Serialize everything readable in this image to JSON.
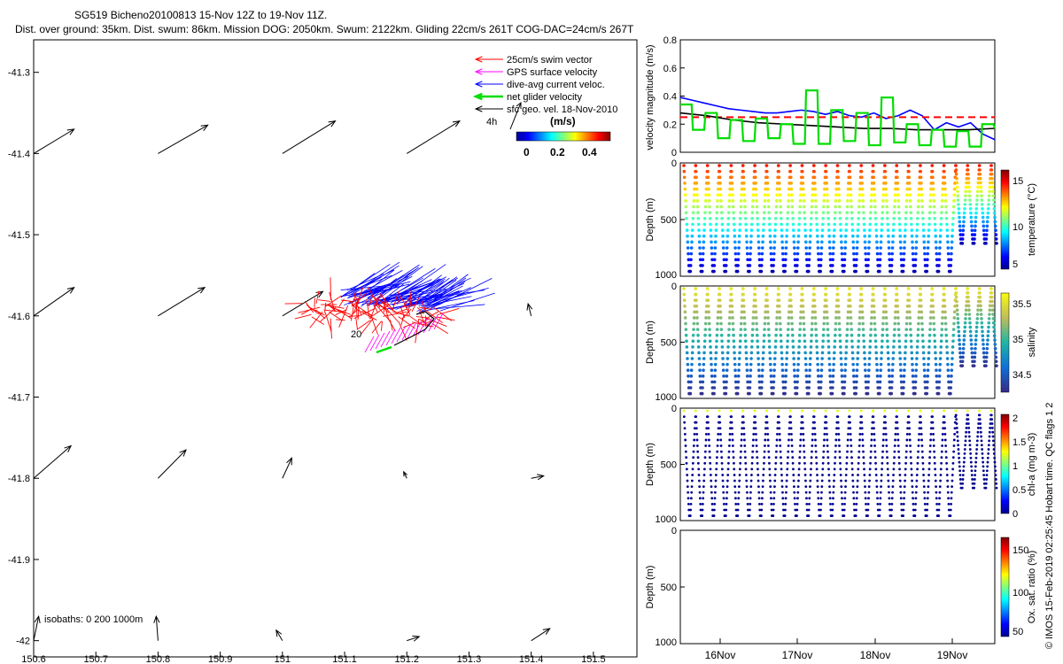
{
  "header": {
    "line1": "SG519 Bicheno20100813 15-Nov 12Z to 19-Nov 11Z.",
    "line2": "Dist. over ground: 35km. Dist. swum: 86km. Mission DOG: 2050km. Swum: 2122km. Gliding 22cm/s 261T COG-DAC=24cm/s 267T"
  },
  "credit": "© IMOS 15-Feb-2019 02:25:45 Hobart time. QC flags 1  2",
  "colors": {
    "swim": "#ff0000",
    "gps": "#ff00ff",
    "dac": "#0000ff",
    "net": "#00dd00",
    "geo": "#000000"
  },
  "map": {
    "legend": [
      {
        "label": "25cm/s swim vector",
        "color": "#ff0000"
      },
      {
        "label": "GPS surface velocity",
        "color": "#ff00ff"
      },
      {
        "label": "dive-avg current veloc.",
        "color": "#0000ff"
      },
      {
        "label": "net glider velocity",
        "color": "#00dd00"
      },
      {
        "label": "sfc geo. vel. 18-Nov-2010",
        "color": "#000000"
      }
    ],
    "scale_label": "4h",
    "colorbar_unit": "(m/s)",
    "colorbar_ticks": [
      "0",
      "0.2",
      "0.4"
    ],
    "isobaths_label": "isobaths: 0   200  1000m",
    "track_label": "20",
    "xticks": [
      "150.6",
      "150.7",
      "150.8",
      "150.9",
      "151",
      "151.1",
      "151.2",
      "151.3",
      "151.4",
      "151.5"
    ],
    "yticks": [
      "-41.3",
      "-41.4",
      "-41.5",
      "-41.6",
      "-41.7",
      "-41.8",
      "-41.9",
      "-42"
    ]
  },
  "chart_data": [
    {
      "type": "scatter",
      "title": "",
      "xlim": [
        150.6,
        151.57
      ],
      "ylim": [
        -42.02,
        -41.26
      ],
      "vector_grid": [
        {
          "lon": 150.6,
          "lat": -41.4,
          "dlon": 0.065,
          "dlat": 0.03
        },
        {
          "lon": 150.8,
          "lat": -41.4,
          "dlon": 0.08,
          "dlat": 0.035
        },
        {
          "lon": 151.0,
          "lat": -41.4,
          "dlon": 0.085,
          "dlat": 0.04
        },
        {
          "lon": 151.2,
          "lat": -41.4,
          "dlon": 0.085,
          "dlat": 0.04
        },
        {
          "lon": 150.6,
          "lat": -41.6,
          "dlon": 0.065,
          "dlat": 0.035
        },
        {
          "lon": 150.8,
          "lat": -41.6,
          "dlon": 0.075,
          "dlat": 0.035
        },
        {
          "lon": 151.0,
          "lat": -41.6,
          "dlon": 0.065,
          "dlat": 0.03
        },
        {
          "lon": 151.4,
          "lat": -41.6,
          "dlon": -0.005,
          "dlat": 0.015
        },
        {
          "lon": 150.6,
          "lat": -41.8,
          "dlon": 0.06,
          "dlat": 0.04
        },
        {
          "lon": 150.8,
          "lat": -41.8,
          "dlon": 0.045,
          "dlat": 0.035
        },
        {
          "lon": 151.0,
          "lat": -41.8,
          "dlon": 0.015,
          "dlat": 0.025
        },
        {
          "lon": 151.2,
          "lat": -41.8,
          "dlon": -0.005,
          "dlat": 0.008
        },
        {
          "lon": 151.4,
          "lat": -41.8,
          "dlon": 0.02,
          "dlat": 0.003
        },
        {
          "lon": 150.6,
          "lat": -42.0,
          "dlon": 0.008,
          "dlat": 0.03
        },
        {
          "lon": 150.8,
          "lat": -42.0,
          "dlon": -0.003,
          "dlat": 0.03
        },
        {
          "lon": 151.0,
          "lat": -42.0,
          "dlon": -0.01,
          "dlat": 0.013
        },
        {
          "lon": 151.2,
          "lat": -42.0,
          "dlon": 0.02,
          "dlat": 0.005
        },
        {
          "lon": 151.4,
          "lat": -42.0,
          "dlon": 0.03,
          "dlat": 0.015
        }
      ]
    },
    {
      "type": "line",
      "ylabel": "velocity magnitude (m/s)",
      "ylim": [
        0,
        0.8
      ],
      "yticks": [
        "0.8",
        "0.6",
        "0.4",
        "0.2",
        "0"
      ],
      "series": [
        {
          "color": "#0000ff",
          "values": [
            0.39,
            0.37,
            0.35,
            0.33,
            0.31,
            0.3,
            0.29,
            0.28,
            0.28,
            0.29,
            0.3,
            0.29,
            0.27,
            0.29,
            0.26,
            0.25,
            0.28,
            0.24,
            0.26,
            0.3,
            0.26,
            0.16,
            0.21,
            0.18,
            0.21,
            0.13,
            0.09
          ]
        },
        {
          "color": "#ff0000",
          "values": [
            0.25,
            0.25
          ]
        },
        {
          "color": "#000000",
          "values": [
            0.28,
            0.26,
            0.23,
            0.21,
            0.2,
            0.19,
            0.18,
            0.17,
            0.17,
            0.16,
            0.16,
            0.16,
            0.17
          ]
        },
        {
          "color": "#00dd00",
          "values": [
            0.34,
            0.16,
            0.28,
            0.1,
            0.23,
            0.08,
            0.24,
            0.1,
            0.2,
            0.06,
            0.44,
            0.06,
            0.3,
            0.08,
            0.28,
            0.05,
            0.39,
            0.07,
            0.2,
            0.05,
            0.16,
            0.04,
            0.15,
            0.04,
            0.2,
            0.17
          ]
        }
      ]
    },
    {
      "type": "scatter",
      "ylabel": "Depth (m)",
      "ylim": [
        1000,
        0
      ],
      "yticks": [
        "0",
        "500",
        "1000"
      ],
      "colorbar_label": "temperature (°C)",
      "colorbar_ticks": [
        "15",
        "10",
        "5"
      ],
      "max_depth": 1000,
      "profiles": 27
    },
    {
      "type": "scatter",
      "ylabel": "Depth (m)",
      "ylim": [
        1000,
        0
      ],
      "yticks": [
        "0",
        "500",
        "1000"
      ],
      "colorbar_label": "salinity",
      "colorbar_ticks": [
        "35.5",
        "35",
        "34.5"
      ],
      "max_depth": 1000,
      "profiles": 27
    },
    {
      "type": "scatter",
      "ylabel": "Depth (m)",
      "ylim": [
        1000,
        0
      ],
      "yticks": [
        "0",
        "500",
        "1000"
      ],
      "colorbar_label": "chl-a (mg m-3)",
      "colorbar_ticks": [
        "2",
        "1.5",
        "1",
        "0.5",
        "0"
      ],
      "max_depth": 1000,
      "profiles": 27
    },
    {
      "type": "scatter",
      "ylabel": "Depth (m)",
      "ylim": [
        1000,
        0
      ],
      "yticks": [
        "0",
        "500",
        "1000"
      ],
      "colorbar_label": "Ox. sat. ratio (%)",
      "colorbar_ticks": [
        "150",
        "100",
        "50"
      ],
      "xticks": [
        "16Nov",
        "17Nov",
        "18Nov",
        "19Nov"
      ]
    }
  ]
}
